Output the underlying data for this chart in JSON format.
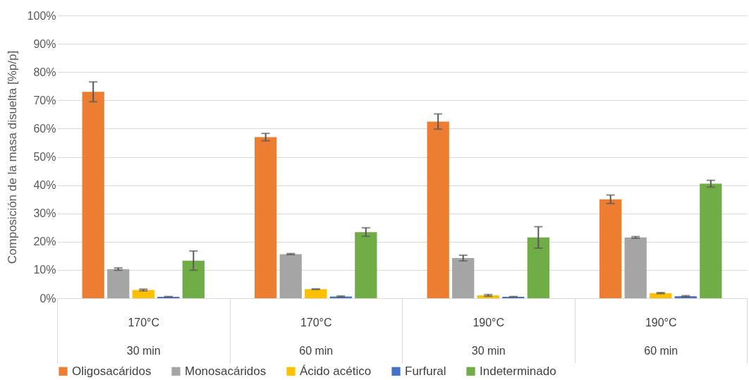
{
  "chart_data": {
    "type": "bar",
    "ylabel": "Composición de la masa disuelta [%p/p]",
    "categories": [
      "170°C\n30 min",
      "170°C\n60 min",
      "190°C\n30 min",
      "190°C\n60 min"
    ],
    "series": [
      {
        "name": "Oligosacáridos",
        "color": "#ed7d31",
        "values": [
          73,
          57,
          62.5,
          35
        ],
        "errors": [
          3.5,
          1.3,
          2.7,
          1.5
        ]
      },
      {
        "name": "Monosacáridos",
        "color": "#a5a5a5",
        "values": [
          10.3,
          15.6,
          14.2,
          21.5
        ],
        "errors": [
          0.4,
          0.2,
          1.0,
          0.3
        ]
      },
      {
        "name": "Ácido acético",
        "color": "#ffc000",
        "values": [
          2.9,
          3.2,
          1.0,
          1.8
        ],
        "errors": [
          0.3,
          0.1,
          0.3,
          0.2
        ]
      },
      {
        "name": "Furfural",
        "color": "#4472c4",
        "values": [
          0.5,
          0.6,
          0.5,
          0.7
        ],
        "errors": [
          0.1,
          0.2,
          0.1,
          0.2
        ]
      },
      {
        "name": "Indeterminado",
        "color": "#70ad47",
        "values": [
          13.3,
          23.4,
          21.5,
          40.5
        ],
        "errors": [
          3.4,
          1.5,
          3.8,
          1.2
        ]
      }
    ],
    "ylim": [
      0,
      100
    ],
    "yticks": [
      {
        "value": 0,
        "label": "0%"
      },
      {
        "value": 10,
        "label": "10%"
      },
      {
        "value": 20,
        "label": "20%"
      },
      {
        "value": 30,
        "label": "30%"
      },
      {
        "value": 40,
        "label": "40%"
      },
      {
        "value": 50,
        "label": "50%"
      },
      {
        "value": 60,
        "label": "60%"
      },
      {
        "value": 70,
        "label": "70%"
      },
      {
        "value": 80,
        "label": "80%"
      },
      {
        "value": 90,
        "label": "90%"
      },
      {
        "value": 100,
        "label": "100%"
      }
    ],
    "grid": "y",
    "legend": "bottom"
  }
}
